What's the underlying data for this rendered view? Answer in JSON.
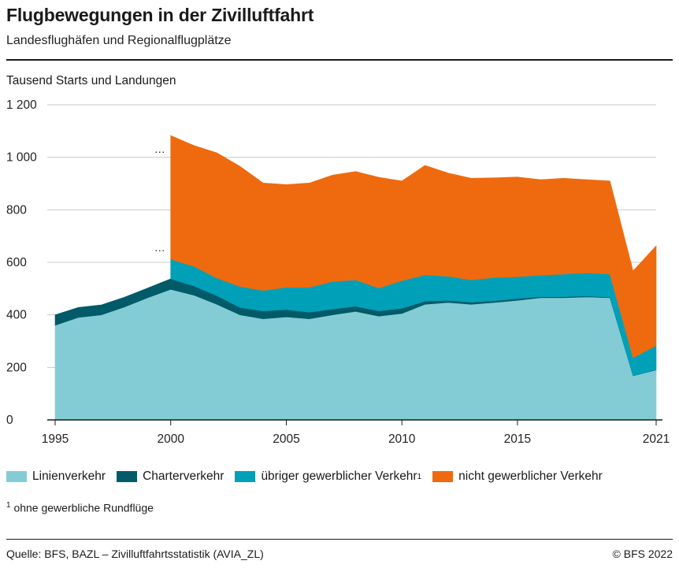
{
  "header": {
    "title": "Flugbewegungen in der Zivilluftfahrt",
    "subtitle": "Landesflughäfen und Regionalflugplätze"
  },
  "chart_data": {
    "type": "area",
    "stacked": true,
    "title": "Flugbewegungen in der Zivilluftfahrt",
    "subtitle": "Landesflughäfen und Regionalflugplätze",
    "ylabel": "Tausend Starts und Landungen",
    "ylim": [
      0,
      1200
    ],
    "yticks": [
      0,
      200,
      400,
      600,
      800,
      1000,
      1200
    ],
    "ytick_labels": [
      "0",
      "200",
      "400",
      "600",
      "800",
      "1 000",
      "1 200"
    ],
    "xlim": [
      1995,
      2021
    ],
    "xticks": [
      1995,
      2000,
      2005,
      2010,
      2015,
      2021
    ],
    "grid": true,
    "legend_position": "bottom",
    "missing_marker": "…",
    "x": [
      1995,
      1996,
      1997,
      1998,
      1999,
      2000,
      2001,
      2002,
      2003,
      2004,
      2005,
      2006,
      2007,
      2008,
      2009,
      2010,
      2011,
      2012,
      2013,
      2014,
      2015,
      2016,
      2017,
      2018,
      2019,
      2020,
      2021
    ],
    "series": [
      {
        "name": "Linienverkehr",
        "color": "#84ccd5",
        "values": [
          360,
          390,
          400,
          430,
          465,
          497,
          475,
          440,
          400,
          385,
          392,
          385,
          400,
          413,
          395,
          405,
          440,
          447,
          440,
          447,
          455,
          465,
          465,
          468,
          465,
          168,
          190
        ]
      },
      {
        "name": "Charterverkehr",
        "color": "#005a68",
        "values": [
          40,
          38,
          38,
          37,
          37,
          40,
          35,
          33,
          28,
          30,
          28,
          25,
          22,
          20,
          20,
          20,
          12,
          8,
          8,
          7,
          7,
          4,
          4,
          4,
          2,
          1,
          1
        ]
      },
      {
        "name": "übriger gewerblicher Verkehr",
        "footnote_ref": "1",
        "color": "#00a0b8",
        "values": [
          null,
          null,
          null,
          null,
          null,
          75,
          75,
          67,
          80,
          78,
          85,
          95,
          105,
          100,
          87,
          105,
          100,
          92,
          85,
          88,
          83,
          82,
          86,
          88,
          88,
          68,
          92
        ]
      },
      {
        "name": "nicht gewerblicher Verkehr",
        "color": "#ef6a0e",
        "values": [
          null,
          null,
          null,
          null,
          null,
          471,
          460,
          477,
          457,
          409,
          391,
          397,
          405,
          413,
          422,
          380,
          417,
          393,
          387,
          380,
          380,
          364,
          365,
          355,
          355,
          330,
          380
        ]
      }
    ]
  },
  "legend": {
    "items": [
      {
        "label": "Linienverkehr",
        "color": "#84ccd5"
      },
      {
        "label": "Charterverkehr",
        "color": "#005a68"
      },
      {
        "label": "übriger gewerblicher Verkehr",
        "sup": "1",
        "color": "#00a0b8"
      },
      {
        "label": "nicht gewerblicher Verkehr",
        "color": "#ef6a0e"
      }
    ]
  },
  "footnote": {
    "marker": "1",
    "text": "ohne gewerbliche Rundflüge"
  },
  "footer": {
    "source": "Quelle: BFS, BAZL – Zivilluftfahrtsstatistik (AVIA_ZL)",
    "copyright": "© BFS 2022"
  }
}
